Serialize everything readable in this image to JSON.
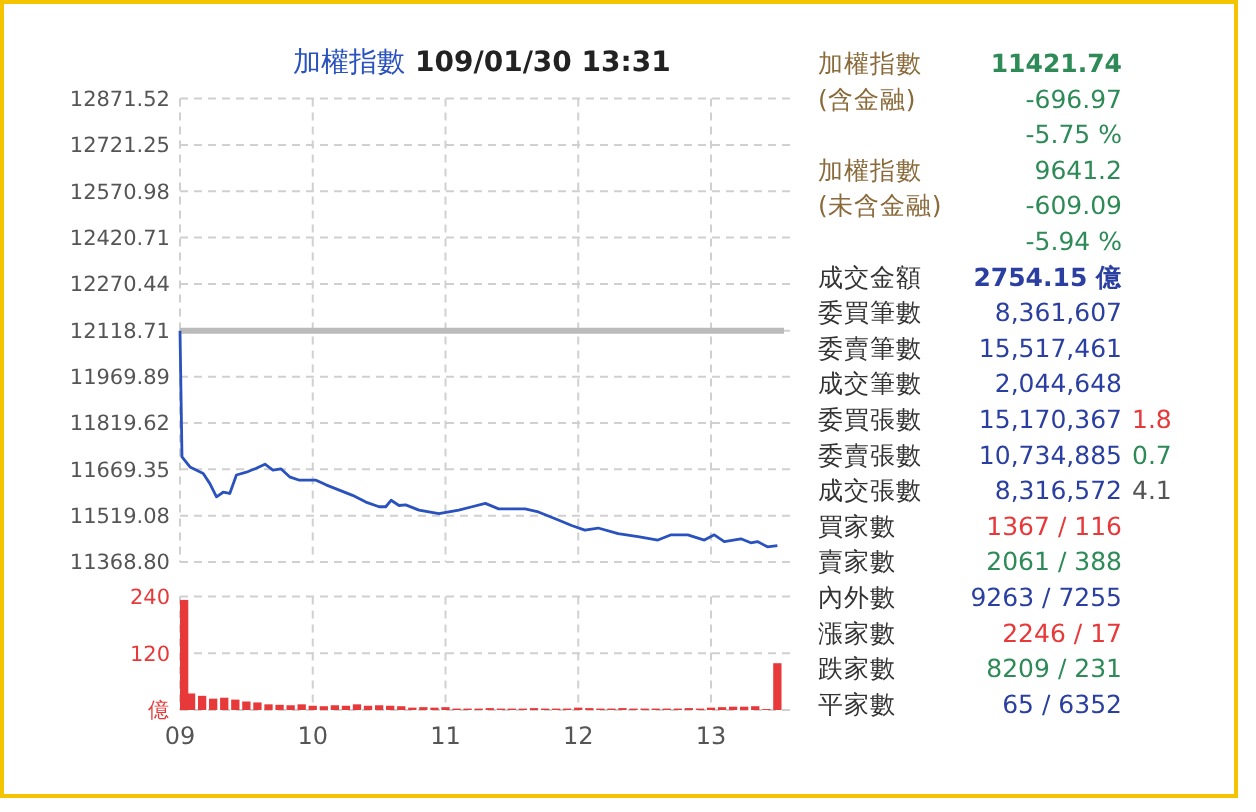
{
  "chart_data": [
    {
      "type": "line",
      "title": "加權指數 109/01/30 13:31",
      "xlim": [
        9,
        13.55
      ],
      "xticks": [
        {
          "value": 9,
          "label": null
        },
        {
          "value": 10,
          "label": null
        },
        {
          "value": 11,
          "label": null
        },
        {
          "value": 12,
          "label": null
        },
        {
          "value": 13,
          "label": null
        }
      ],
      "ylim": [
        11368.8,
        12871.52
      ],
      "yticks": [
        {
          "value": 11368.8,
          "label": "11368.80"
        },
        11519.08,
        11669.35,
        11819.62,
        11969.89,
        12118.71,
        12270.44,
        12420.71,
        12570.98,
        12721.25,
        12871.52
      ],
      "grid": true,
      "tick_labels": "y",
      "marker": "none",
      "line_style": "solid",
      "ref_lines": [
        {
          "axis": "y",
          "value": 12118.71,
          "color": "#bbbbbb"
        }
      ],
      "series": [
        {
          "color": "#2a52be",
          "x": [
            9,
            9.015,
            9.075,
            9.175,
            9.225,
            9.275,
            9.325,
            9.375,
            9.425,
            9.5,
            9.575,
            9.64,
            9.7,
            9.76,
            9.825,
            9.9,
            10.025,
            10.1,
            10.2,
            10.3,
            10.4,
            10.5,
            10.55,
            10.59,
            10.65,
            10.7,
            10.8,
            10.95,
            11.1,
            11.2,
            11.3,
            11.4,
            11.6,
            11.7,
            11.85,
            11.95,
            12.05,
            12.15,
            12.3,
            12.45,
            12.6,
            12.7,
            12.825,
            12.95,
            13.025,
            13.1,
            13.225,
            13.3,
            13.35,
            13.425,
            13.5
          ],
          "values": [
            12119,
            11710,
            11677,
            11656,
            11623,
            11580,
            11595,
            11591,
            11651,
            11660,
            11673,
            11686,
            11667,
            11671,
            11645,
            11634,
            11634,
            11619,
            11602,
            11585,
            11563,
            11548,
            11548,
            11569,
            11552,
            11554,
            11537,
            11526,
            11537,
            11548,
            11559,
            11541,
            11541,
            11531,
            11505,
            11487,
            11472,
            11479,
            11461,
            11451,
            11440,
            11457,
            11457,
            11440,
            11457,
            11435,
            11444,
            11431,
            11435,
            11418,
            11422
          ]
        }
      ]
    },
    {
      "type": "bar",
      "xlim": [
        9,
        13.55
      ],
      "xticks": [
        {
          "value": 9,
          "label": "09"
        },
        {
          "value": 10,
          "label": "10"
        },
        {
          "value": 11,
          "label": "11"
        },
        {
          "value": 12,
          "label": "12"
        },
        {
          "value": 13,
          "label": "13"
        }
      ],
      "ylim": [
        0,
        240
      ],
      "yticks": [
        {
          "value": 0,
          "label": "億"
        },
        120,
        240
      ],
      "grid": true,
      "series": [
        {
          "color": "#e8393a",
          "x": [
            9,
            9.0833,
            9.1667,
            9.25,
            9.3333,
            9.4167,
            9.5,
            9.5833,
            9.6667,
            9.75,
            9.8333,
            9.9167,
            10,
            10.0833,
            10.1667,
            10.25,
            10.3333,
            10.4167,
            10.5,
            10.5833,
            10.6667,
            10.75,
            10.8333,
            10.9167,
            11,
            11.0833,
            11.1667,
            11.25,
            11.3333,
            11.4167,
            11.5,
            11.5833,
            11.6667,
            11.75,
            11.8333,
            11.9167,
            12,
            12.0833,
            12.1667,
            12.25,
            12.3333,
            12.4167,
            12.5,
            12.5833,
            12.6667,
            12.75,
            12.8333,
            12.9167,
            13,
            13.0833,
            13.1667,
            13.25,
            13.3333,
            13.4167,
            13.5
          ],
          "values": [
            233,
            35,
            30,
            24,
            26,
            22,
            18,
            16,
            12,
            11,
            10,
            12,
            9,
            8,
            10,
            9,
            12,
            9,
            10,
            9,
            8,
            5,
            6,
            5,
            6,
            3,
            3,
            3,
            4,
            3,
            3,
            3,
            4,
            3,
            3,
            3,
            5,
            4,
            3,
            3,
            4,
            3,
            3,
            3,
            3,
            3,
            4,
            3,
            5,
            6,
            7,
            7,
            8,
            2,
            99
          ]
        }
      ]
    },
    {
      "type": "other",
      "annotations": [
        "加權指數",
        "11421.74",
        "(含金融)",
        "-696.97",
        "-5.75 %",
        "加權指數",
        "9641.2",
        "(未含金融)",
        "-609.09",
        "-5.94 %",
        "成交金額",
        "2754.15 億",
        "委買筆數",
        "8,361,607",
        "委賣筆數",
        "15,517,461",
        "成交筆數",
        "2,044,648",
        "委買張數",
        "15,170,367",
        "1.8",
        "委賣張數",
        "10,734,885",
        "0.7",
        "成交張數",
        "8,316,572",
        "4.1",
        "買家數",
        "1367 / 116",
        "賣家數",
        "2061 / 388",
        "內外數",
        "9263 / 7255",
        "漲家數",
        "2246 / 17",
        "跌家數",
        "8209 / 231",
        "平家數",
        "65 / 6352"
      ]
    }
  ]
}
